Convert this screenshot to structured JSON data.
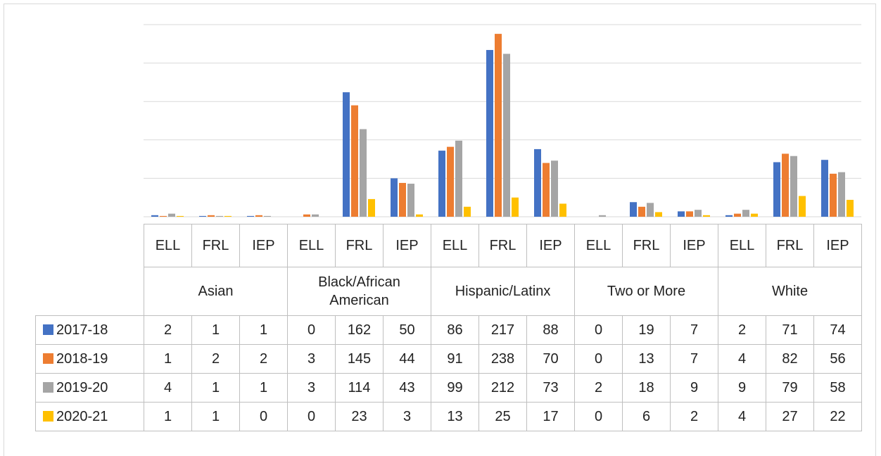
{
  "chart_data": {
    "type": "bar",
    "groups": [
      "Asian",
      "Black/African American",
      "Hispanic/Latinx",
      "Two or More",
      "White"
    ],
    "categories": [
      "ELL",
      "FRL",
      "IEP",
      "ELL",
      "FRL",
      "IEP",
      "ELL",
      "FRL",
      "IEP",
      "ELL",
      "FRL",
      "IEP",
      "ELL",
      "FRL",
      "IEP"
    ],
    "series": [
      {
        "name": "2017-18",
        "color": "#4472c4",
        "values": [
          2,
          1,
          1,
          0,
          162,
          50,
          86,
          217,
          88,
          0,
          19,
          7,
          2,
          71,
          74
        ]
      },
      {
        "name": "2018-19",
        "color": "#ed7d31",
        "values": [
          1,
          2,
          2,
          3,
          145,
          44,
          91,
          238,
          70,
          0,
          13,
          7,
          4,
          82,
          56
        ]
      },
      {
        "name": "2019-20",
        "color": "#a5a5a5",
        "values": [
          4,
          1,
          1,
          3,
          114,
          43,
          99,
          212,
          73,
          2,
          18,
          9,
          9,
          79,
          58
        ]
      },
      {
        "name": "2020-21",
        "color": "#ffc000",
        "values": [
          1,
          1,
          0,
          0,
          23,
          3,
          13,
          25,
          17,
          0,
          6,
          2,
          4,
          27,
          22
        ]
      }
    ],
    "ylim": [
      0,
      250
    ],
    "yticks": [
      0,
      50,
      100,
      150,
      200,
      250
    ],
    "grid": true
  }
}
